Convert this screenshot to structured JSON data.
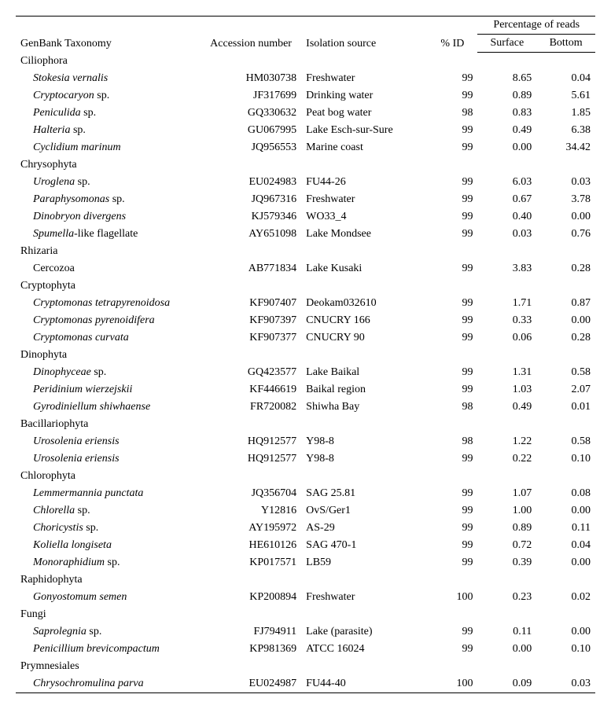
{
  "headers": {
    "taxonomy": "GenBank Taxonomy",
    "accession": "Accession number",
    "isolation": "Isolation source",
    "id": "% ID",
    "reads_group": "Percentage of reads",
    "surface": "Surface",
    "bottom": "Bottom"
  },
  "groups": [
    {
      "name": "Ciliophora",
      "rows": [
        {
          "taxonomy_html": "<span class='italic'>Stokesia vernalis</span>",
          "accession": "HM030738",
          "isolation": "Freshwater",
          "id": "99",
          "surface": "8.65",
          "bottom": "0.04"
        },
        {
          "taxonomy_html": "<span class='italic'>Cryptocaryon</span> sp.",
          "accession": "JF317699",
          "isolation": "Drinking water",
          "id": "99",
          "surface": "0.89",
          "bottom": "5.61"
        },
        {
          "taxonomy_html": "<span class='italic'>Peniculida</span> sp.",
          "accession": "GQ330632",
          "isolation": "Peat bog water",
          "id": "98",
          "surface": "0.83",
          "bottom": "1.85"
        },
        {
          "taxonomy_html": "<span class='italic'>Halteria</span> sp.",
          "accession": "GU067995",
          "isolation": "Lake Esch-sur-Sure",
          "id": "99",
          "surface": "0.49",
          "bottom": "6.38"
        },
        {
          "taxonomy_html": "<span class='italic'>Cyclidium marinum</span>",
          "accession": "JQ956553",
          "isolation": "Marine coast",
          "id": "99",
          "surface": "0.00",
          "bottom": "34.42"
        }
      ]
    },
    {
      "name": "Chrysophyta",
      "rows": [
        {
          "taxonomy_html": "<span class='italic'>Uroglena</span> sp.",
          "accession": "EU024983",
          "isolation": "FU44-26",
          "id": "99",
          "surface": "6.03",
          "bottom": "0.03"
        },
        {
          "taxonomy_html": "<span class='italic'>Paraphysomonas</span> sp.",
          "accession": "JQ967316",
          "isolation": "Freshwater",
          "id": "99",
          "surface": "0.67",
          "bottom": "3.78"
        },
        {
          "taxonomy_html": "<span class='italic'>Dinobryon divergens</span>",
          "accession": "KJ579346",
          "isolation": "WO33_4",
          "id": "99",
          "surface": "0.40",
          "bottom": "0.00"
        },
        {
          "taxonomy_html": "<span class='italic'>Spumella</span>-like flagellate",
          "accession": "AY651098",
          "isolation": "Lake Mondsee",
          "id": "99",
          "surface": "0.03",
          "bottom": "0.76"
        }
      ]
    },
    {
      "name": "Rhizaria",
      "rows": [
        {
          "taxonomy_html": "Cercozoa",
          "accession": "AB771834",
          "isolation": "Lake Kusaki",
          "id": "99",
          "surface": "3.83",
          "bottom": "0.28"
        }
      ]
    },
    {
      "name": "Cryptophyta",
      "rows": [
        {
          "taxonomy_html": "<span class='italic'>Cryptomonas tetrapyrenoidosa</span>",
          "accession": "KF907407",
          "isolation": "Deokam032610",
          "id": "99",
          "surface": "1.71",
          "bottom": "0.87"
        },
        {
          "taxonomy_html": "<span class='italic'>Cryptomonas pyrenoidifera</span>",
          "accession": "KF907397",
          "isolation": "CNUCRY 166",
          "id": "99",
          "surface": "0.33",
          "bottom": "0.00"
        },
        {
          "taxonomy_html": "<span class='italic'>Cryptomonas curvata</span>",
          "accession": "KF907377",
          "isolation": "CNUCRY 90",
          "id": "99",
          "surface": "0.06",
          "bottom": "0.28"
        }
      ]
    },
    {
      "name": "Dinophyta",
      "rows": [
        {
          "taxonomy_html": "<span class='italic'>Dinophyceae</span> sp.",
          "accession": "GQ423577",
          "isolation": "Lake Baikal",
          "id": "99",
          "surface": "1.31",
          "bottom": "0.58"
        },
        {
          "taxonomy_html": "<span class='italic'>Peridinium wierzejskii</span>",
          "accession": "KF446619",
          "isolation": "Baikal region",
          "id": "99",
          "surface": "1.03",
          "bottom": "2.07"
        },
        {
          "taxonomy_html": "<span class='italic'>Gyrodiniellum shiwhaense</span>",
          "accession": "FR720082",
          "isolation": "Shiwha Bay",
          "id": "98",
          "surface": "0.49",
          "bottom": "0.01"
        }
      ]
    },
    {
      "name": "Bacillariophyta",
      "rows": [
        {
          "taxonomy_html": "<span class='italic'>Urosolenia eriensis</span>",
          "accession": "HQ912577",
          "isolation": "Y98-8",
          "id": "98",
          "surface": "1.22",
          "bottom": "0.58"
        },
        {
          "taxonomy_html": "<span class='italic'>Urosolenia eriensis</span>",
          "accession": "HQ912577",
          "isolation": "Y98-8",
          "id": "99",
          "surface": "0.22",
          "bottom": "0.10"
        }
      ]
    },
    {
      "name": "Chlorophyta",
      "rows": [
        {
          "taxonomy_html": "<span class='italic'>Lemmermannia punctata</span>",
          "accession": "JQ356704",
          "isolation": "SAG 25.81",
          "id": "99",
          "surface": "1.07",
          "bottom": "0.08"
        },
        {
          "taxonomy_html": "<span class='italic'>Chlorella</span> sp.",
          "accession": "Y12816",
          "isolation": "OvS/Ger1",
          "id": "99",
          "surface": "1.00",
          "bottom": "0.00"
        },
        {
          "taxonomy_html": "<span class='italic'>Choricystis</span> sp.",
          "accession": "AY195972",
          "isolation": "AS-29",
          "id": "99",
          "surface": "0.89",
          "bottom": "0.11"
        },
        {
          "taxonomy_html": "<span class='italic'>Koliella longiseta</span>",
          "accession": "HE610126",
          "isolation": "SAG 470-1",
          "id": "99",
          "surface": "0.72",
          "bottom": "0.04"
        },
        {
          "taxonomy_html": "<span class='italic'>Monoraphidium</span> sp.",
          "accession": "KP017571",
          "isolation": "LB59",
          "id": "99",
          "surface": "0.39",
          "bottom": "0.00"
        }
      ]
    },
    {
      "name": "Raphidophyta",
      "rows": [
        {
          "taxonomy_html": "<span class='italic'>Gonyostomum semen</span>",
          "accession": "KP200894",
          "isolation": "Freshwater",
          "id": "100",
          "surface": "0.23",
          "bottom": "0.02"
        }
      ]
    },
    {
      "name": "Fungi",
      "rows": [
        {
          "taxonomy_html": "<span class='italic'>Saprolegnia</span> sp.",
          "accession": "FJ794911",
          "isolation": "Lake (parasite)",
          "id": "99",
          "surface": "0.11",
          "bottom": "0.00"
        },
        {
          "taxonomy_html": "<span class='italic'>Penicillium brevicompactum</span>",
          "accession": "KP981369",
          "isolation": "ATCC 16024",
          "id": "99",
          "surface": "0.00",
          "bottom": "0.10"
        }
      ]
    },
    {
      "name": "Prymnesiales",
      "rows": [
        {
          "taxonomy_html": "<span class='italic'>Chrysochromulina parva</span>",
          "accession": "EU024987",
          "isolation": "FU44-40",
          "id": "100",
          "surface": "0.09",
          "bottom": "0.03"
        }
      ]
    }
  ]
}
